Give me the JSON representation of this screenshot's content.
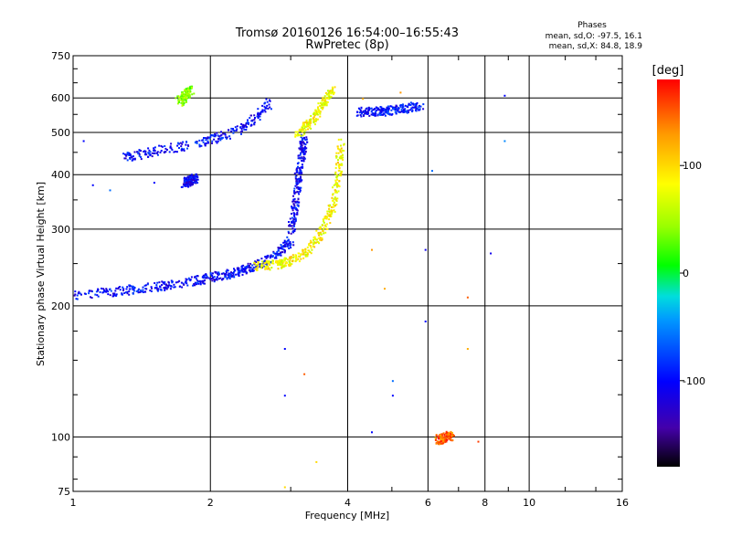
{
  "chart_data": {
    "type": "scatter",
    "title": "Tromsø 20160126 16:54:00–16:55:43",
    "subtitle": "RwPretec (8p)",
    "xlabel": "Frequency [MHz]",
    "ylabel": "Stationary phase Virtual Height [km]",
    "xscale": "log",
    "yscale": "log",
    "xlim": [
      1,
      16
    ],
    "ylim": [
      75,
      750
    ],
    "xticks": [
      1,
      2,
      4,
      6,
      8,
      10,
      16
    ],
    "xtick_labels": [
      "1",
      "2",
      "4",
      "6",
      "8",
      "10",
      "16"
    ],
    "yticks": [
      75,
      100,
      200,
      300,
      400,
      500,
      600,
      750
    ],
    "ytick_labels": [
      "75",
      "100",
      "200",
      "300",
      "400",
      "500",
      "600",
      "750"
    ],
    "stats": {
      "title": "Phases",
      "line_o": "mean, sd,O: -97.5, 16.1",
      "line_x": "mean, sd,X:  84.8, 18.9"
    },
    "colorbar": {
      "label": "[deg]",
      "range": [
        -180,
        180
      ],
      "ticks": [
        -100,
        0,
        100
      ],
      "tick_labels": [
        "-100",
        "0",
        "100"
      ]
    },
    "traces": [
      {
        "name": "O-mode E/F1 lower trace",
        "phase": -100,
        "x": [
          1.0,
          1.2,
          1.4,
          1.6,
          1.8,
          2.0,
          2.2,
          2.4,
          2.6,
          2.8,
          3.0
        ],
        "y": [
          212,
          216,
          220,
          224,
          228,
          233,
          238,
          244,
          252,
          265,
          285
        ]
      },
      {
        "name": "O-mode F1 cusp",
        "phase": -105,
        "x": [
          3.0,
          3.05,
          3.1,
          3.15,
          3.2
        ],
        "y": [
          300,
          340,
          390,
          440,
          490
        ]
      },
      {
        "name": "X-mode F2 trace",
        "phase": 85,
        "x": [
          2.5,
          2.8,
          3.0,
          3.3,
          3.5,
          3.7,
          3.8,
          3.85
        ],
        "y": [
          248,
          250,
          255,
          270,
          300,
          340,
          400,
          480
        ]
      },
      {
        "name": "X-mode upper branch",
        "phase": 80,
        "x": [
          3.1,
          3.3,
          3.5,
          3.7
        ],
        "y": [
          500,
          530,
          580,
          630
        ]
      },
      {
        "name": "O-mode multi-hop trace",
        "phase": -100,
        "x": [
          1.3,
          1.5,
          1.8,
          2.1,
          2.4,
          2.7
        ],
        "y": [
          440,
          455,
          470,
          490,
          520,
          590
        ]
      },
      {
        "name": "O-mode high trace",
        "phase": -95,
        "x": [
          4.2,
          4.6,
          5.0,
          5.4,
          5.8
        ],
        "y": [
          560,
          560,
          565,
          570,
          580
        ]
      },
      {
        "name": "Green patch",
        "phase": 40,
        "x": [
          1.7,
          1.75,
          1.8
        ],
        "y": [
          590,
          610,
          630
        ]
      },
      {
        "name": "Blue cluster",
        "phase": -110,
        "x": [
          1.75,
          1.8,
          1.85
        ],
        "y": [
          385,
          390,
          395
        ]
      },
      {
        "name": "Red/orange cluster",
        "phase": 150,
        "x": [
          6.3,
          6.5,
          6.7
        ],
        "y": [
          99,
          100,
          101
        ]
      }
    ],
    "scattered_points": [
      {
        "x": 8.8,
        "y": 610,
        "phase": -100
      },
      {
        "x": 8.8,
        "y": 480,
        "phase": -50
      },
      {
        "x": 8.2,
        "y": 265,
        "phase": -110
      },
      {
        "x": 7.3,
        "y": 210,
        "phase": 150
      },
      {
        "x": 7.3,
        "y": 160,
        "phase": 120
      },
      {
        "x": 5.9,
        "y": 185,
        "phase": -100
      },
      {
        "x": 5.0,
        "y": 135,
        "phase": -60
      },
      {
        "x": 4.5,
        "y": 103,
        "phase": -100
      },
      {
        "x": 5.0,
        "y": 125,
        "phase": -100
      },
      {
        "x": 6.1,
        "y": 410,
        "phase": -60
      },
      {
        "x": 5.9,
        "y": 270,
        "phase": -110
      },
      {
        "x": 2.9,
        "y": 160,
        "phase": -100
      },
      {
        "x": 2.9,
        "y": 125,
        "phase": -100
      },
      {
        "x": 3.2,
        "y": 140,
        "phase": 150
      },
      {
        "x": 3.4,
        "y": 88,
        "phase": 100
      },
      {
        "x": 2.9,
        "y": 77,
        "phase": 100
      },
      {
        "x": 5.2,
        "y": 620,
        "phase": 130
      },
      {
        "x": 1.05,
        "y": 480,
        "phase": -100
      },
      {
        "x": 1.1,
        "y": 380,
        "phase": -100
      },
      {
        "x": 1.2,
        "y": 370,
        "phase": -60
      },
      {
        "x": 1.5,
        "y": 385,
        "phase": -100
      },
      {
        "x": 4.3,
        "y": 600,
        "phase": 120
      },
      {
        "x": 4.5,
        "y": 270,
        "phase": 130
      },
      {
        "x": 4.8,
        "y": 220,
        "phase": 120
      },
      {
        "x": 6.2,
        "y": 100,
        "phase": 110
      },
      {
        "x": 7.7,
        "y": 98,
        "phase": 160
      }
    ]
  }
}
